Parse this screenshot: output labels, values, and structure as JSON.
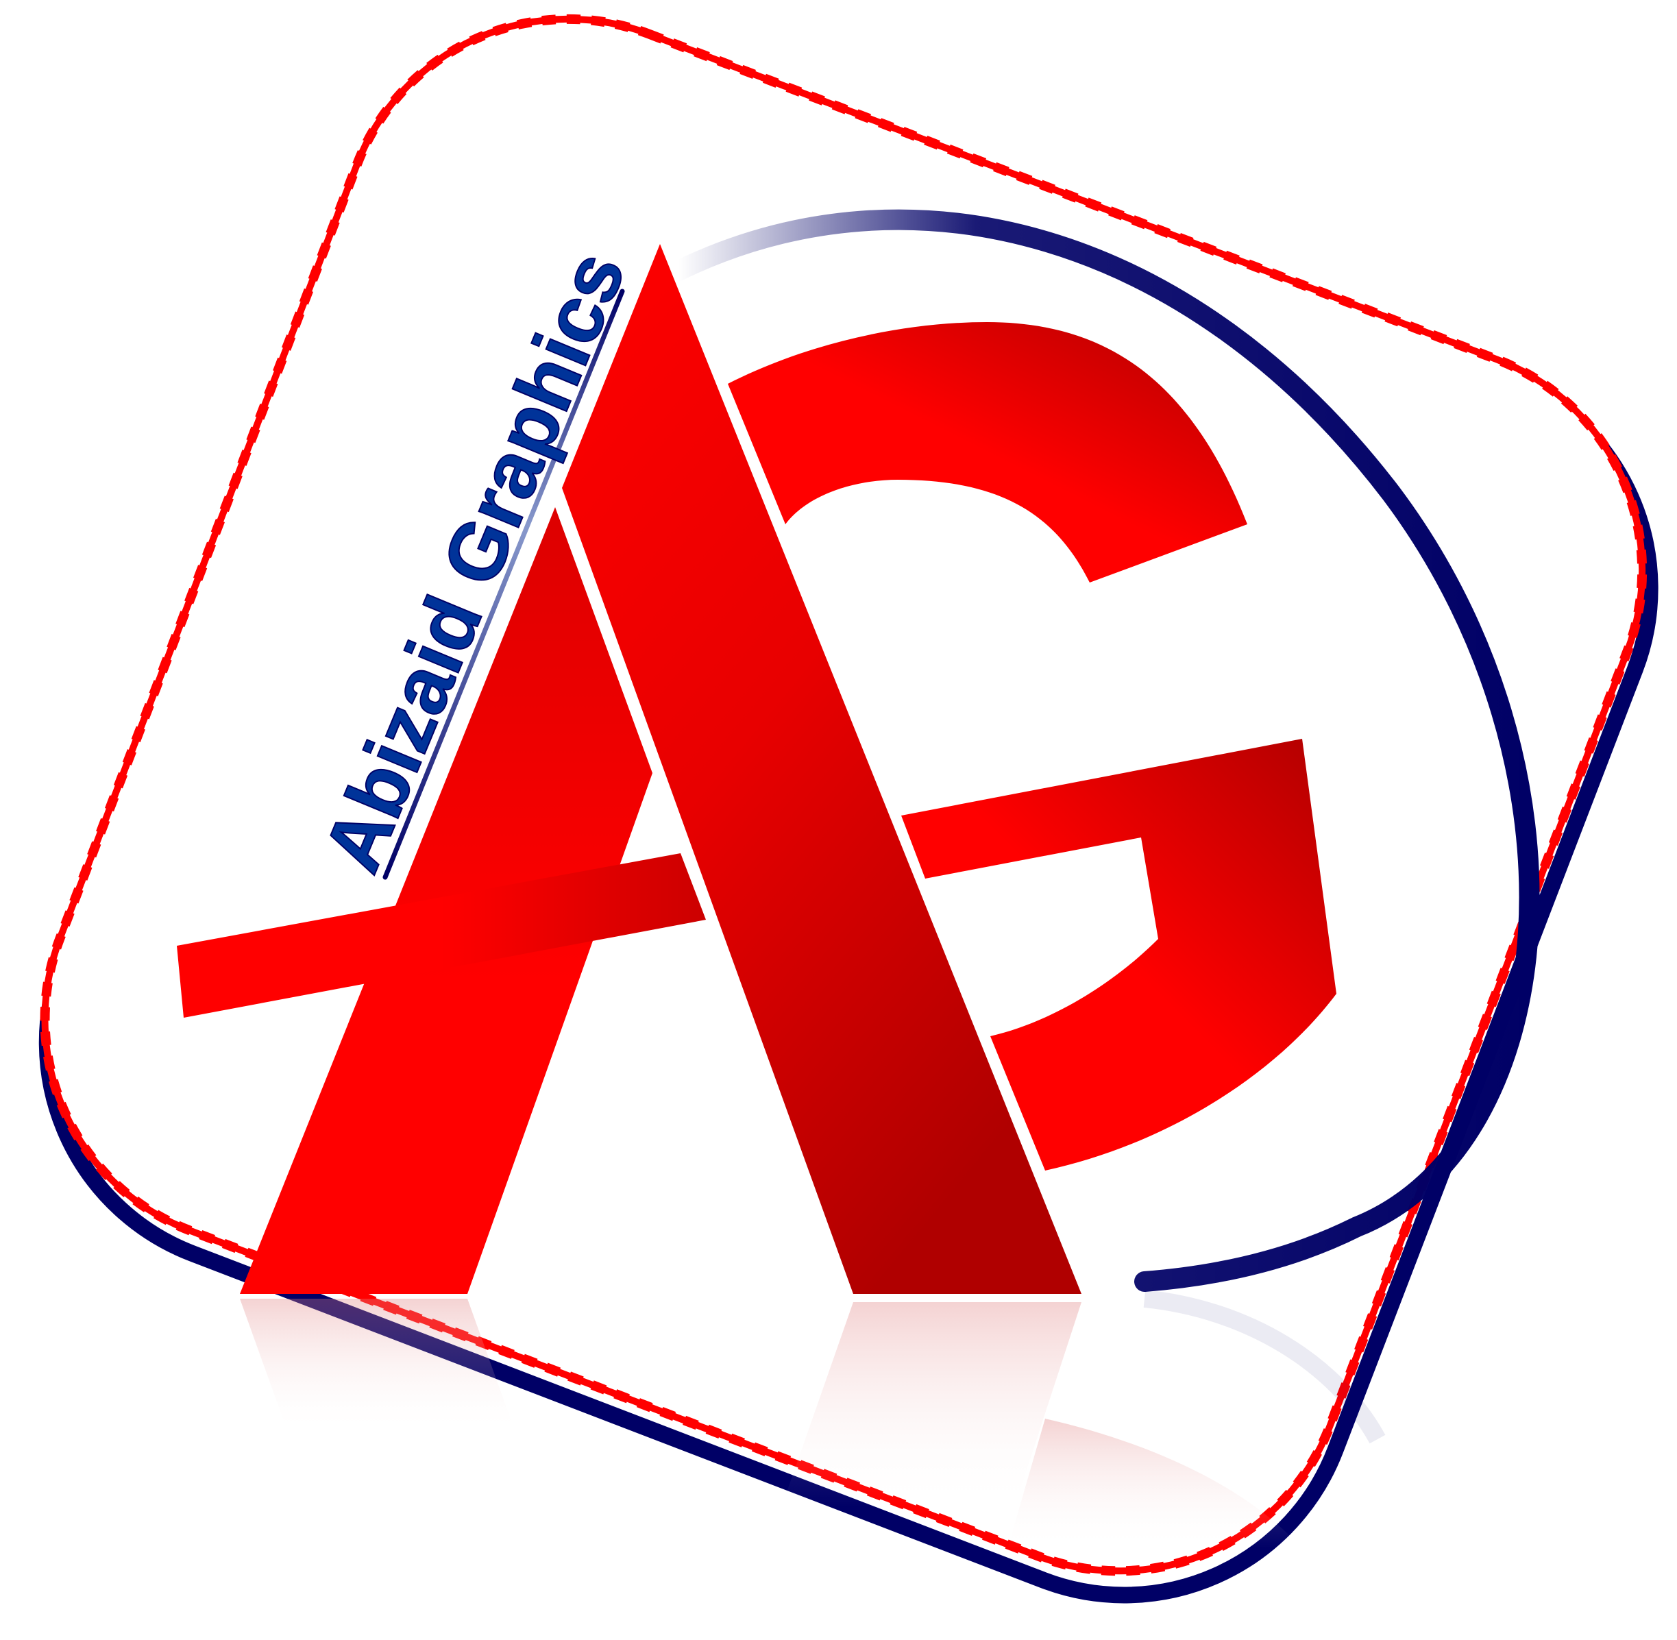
{
  "logo": {
    "brand_text": "Abizaid Graphics",
    "monogram": "AG",
    "icon": "ag-monogram-logo-icon",
    "colors": {
      "primary_red": "#ff0000",
      "dark_red": "#b00000",
      "navy": "#000066",
      "brand_text": "#003399",
      "background": "#ffffff"
    }
  }
}
